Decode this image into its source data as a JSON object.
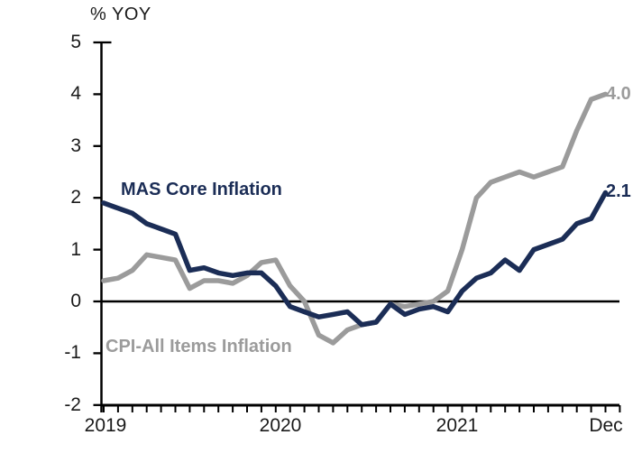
{
  "chart_data": {
    "type": "line",
    "unit_label": "% YOY",
    "grid": false,
    "legend_position": "in-plot-labels",
    "x_axis": {
      "tick_labels": [
        "2019",
        "2020",
        "2021",
        "Dec"
      ],
      "minor_ticks": "monthly"
    },
    "y_axis": {
      "range": [
        -2,
        5
      ],
      "ticks": [
        5,
        4,
        3,
        2,
        1,
        0,
        -1,
        -2
      ]
    },
    "baseline": 0,
    "months": [
      "Jan 2019",
      "Feb 2019",
      "Mar 2019",
      "Apr 2019",
      "May 2019",
      "Jun 2019",
      "Jul 2019",
      "Aug 2019",
      "Sep 2019",
      "Oct 2019",
      "Nov 2019",
      "Dec 2019",
      "Jan 2020",
      "Feb 2020",
      "Mar 2020",
      "Apr 2020",
      "May 2020",
      "Jun 2020",
      "Jul 2020",
      "Aug 2020",
      "Sep 2020",
      "Oct 2020",
      "Nov 2020",
      "Dec 2020",
      "Jan 2021",
      "Feb 2021",
      "Mar 2021",
      "Apr 2021",
      "May 2021",
      "Jun 2021",
      "Jul 2021",
      "Aug 2021",
      "Sep 2021",
      "Oct 2021",
      "Nov 2021",
      "Dec 2021"
    ],
    "series": [
      {
        "name": "MAS Core Inflation",
        "color": "#1b2d56",
        "end_label": "2.1",
        "values": [
          1.9,
          1.8,
          1.7,
          1.5,
          1.4,
          1.3,
          0.6,
          0.65,
          0.55,
          0.5,
          0.55,
          0.55,
          0.3,
          -0.1,
          -0.2,
          -0.3,
          -0.25,
          -0.2,
          -0.45,
          -0.4,
          -0.05,
          -0.25,
          -0.15,
          -0.1,
          -0.2,
          0.2,
          0.45,
          0.55,
          0.8,
          0.6,
          1.0,
          1.1,
          1.2,
          1.5,
          1.6,
          2.1
        ]
      },
      {
        "name": "CPI-All Items Inflation",
        "color": "#9b9b9b",
        "end_label": "4.0",
        "values": [
          0.4,
          0.45,
          0.6,
          0.9,
          0.85,
          0.8,
          0.25,
          0.4,
          0.4,
          0.35,
          0.5,
          0.75,
          0.8,
          0.3,
          0.0,
          -0.65,
          -0.8,
          -0.55,
          -0.45,
          -0.4,
          -0.05,
          -0.1,
          -0.05,
          0.0,
          0.2,
          1.0,
          2.0,
          2.3,
          2.4,
          2.5,
          2.4,
          2.5,
          2.6,
          3.3,
          3.9,
          4.0
        ]
      }
    ]
  }
}
